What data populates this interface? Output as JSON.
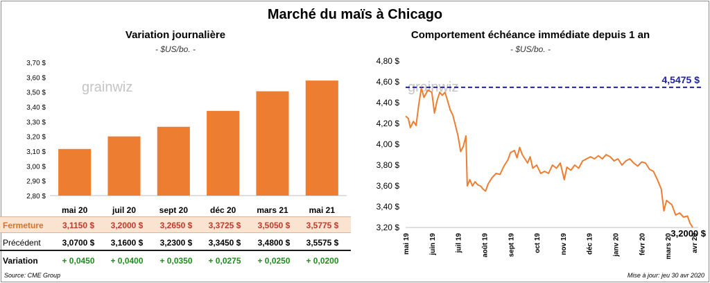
{
  "title": "Marché du maïs à Chicago",
  "left_panel": {
    "subtitle": "Variation journalière",
    "unit": "- $US/bo. -",
    "logo": "grainwiz"
  },
  "right_panel": {
    "subtitle": "Comportement échéance immédiate depuis 1 an",
    "unit": "- $US/bo. -",
    "logo": "grainwiz"
  },
  "table": {
    "close_label": "Fermeture",
    "prev_label": "Précédent",
    "var_label": "Variation",
    "close": [
      "3,1150 $",
      "3,2000 $",
      "3,2650 $",
      "3,3725 $",
      "3,5050 $",
      "3,5775 $"
    ],
    "prev": [
      "3,0700 $",
      "3,1600 $",
      "3,2300 $",
      "3,3450 $",
      "3,4800 $",
      "3,5575 $"
    ],
    "var": [
      "+ 0,0450",
      "+ 0,0400",
      "+ 0,0350",
      "+ 0,0275",
      "+ 0,0250",
      "+ 0,0200"
    ]
  },
  "footer": {
    "source": "Source: CME Group",
    "updated": "Mise à jour: jeu 30 avr 2020"
  },
  "colors": {
    "bar": "#ed7d31",
    "line": "#ed7d31",
    "ref_line": "#1f1fa8",
    "up": "#1e8c1e"
  },
  "chart_data": [
    {
      "type": "bar",
      "title": "Variation journalière",
      "ylabel": "- $US/bo. -",
      "categories": [
        "mai 20",
        "juil 20",
        "sept 20",
        "déc 20",
        "mars 21",
        "mai 21"
      ],
      "values": [
        3.115,
        3.2,
        3.265,
        3.3725,
        3.505,
        3.5775
      ],
      "ylim": [
        2.8,
        3.7
      ],
      "yticks": [
        2.8,
        2.9,
        3.0,
        3.1,
        3.2,
        3.3,
        3.4,
        3.5,
        3.6,
        3.7
      ],
      "ytick_labels": [
        "2,80 $",
        "2,90 $",
        "3,00 $",
        "3,10 $",
        "3,20 $",
        "3,30 $",
        "3,40 $",
        "3,50 $",
        "3,60 $",
        "3,70 $"
      ],
      "grid": false
    },
    {
      "type": "line",
      "title": "Comportement échéance immédiate depuis 1 an",
      "ylabel": "- $US/bo. -",
      "ylim": [
        3.2,
        4.8
      ],
      "yticks": [
        3.2,
        3.4,
        3.6,
        3.8,
        4.0,
        4.2,
        4.4,
        4.6,
        4.8
      ],
      "ytick_labels": [
        "3,20 $",
        "3,40 $",
        "3,60 $",
        "3,80 $",
        "4,00 $",
        "4,20 $",
        "4,40 $",
        "4,60 $",
        "4,80 $"
      ],
      "x_categories": [
        "mai 19",
        "juin 19",
        "juil 19",
        "août 19",
        "sept 19",
        "oct 19",
        "nov 19",
        "déc 19",
        "janv 20",
        "févr 20",
        "mars 20",
        "avr 20"
      ],
      "reference_line": {
        "value": 4.5475,
        "label": "4,5475 $"
      },
      "last_value": {
        "value": 3.2,
        "label": "3,2000 $"
      },
      "series": [
        {
          "points": [
            [
              0.0,
              4.27
            ],
            [
              0.1,
              4.25
            ],
            [
              0.18,
              4.16
            ],
            [
              0.3,
              4.22
            ],
            [
              0.4,
              4.18
            ],
            [
              0.5,
              4.38
            ],
            [
              0.6,
              4.54
            ],
            [
              0.7,
              4.45
            ],
            [
              0.85,
              4.52
            ],
            [
              1.0,
              4.5
            ],
            [
              1.1,
              4.3
            ],
            [
              1.2,
              4.42
            ],
            [
              1.3,
              4.5
            ],
            [
              1.4,
              4.47
            ],
            [
              1.5,
              4.5
            ],
            [
              1.6,
              4.42
            ],
            [
              1.7,
              4.33
            ],
            [
              1.8,
              4.28
            ],
            [
              1.9,
              4.18
            ],
            [
              2.0,
              4.08
            ],
            [
              2.1,
              3.93
            ],
            [
              2.2,
              3.98
            ],
            [
              2.3,
              4.08
            ],
            [
              2.35,
              3.6
            ],
            [
              2.45,
              3.66
            ],
            [
              2.55,
              3.6
            ],
            [
              2.65,
              3.64
            ],
            [
              2.75,
              3.61
            ],
            [
              2.85,
              3.6
            ],
            [
              2.95,
              3.57
            ],
            [
              3.05,
              3.55
            ],
            [
              3.15,
              3.62
            ],
            [
              3.3,
              3.68
            ],
            [
              3.45,
              3.72
            ],
            [
              3.6,
              3.71
            ],
            [
              3.75,
              3.79
            ],
            [
              3.9,
              3.85
            ],
            [
              4.0,
              3.92
            ],
            [
              4.15,
              3.94
            ],
            [
              4.25,
              3.87
            ],
            [
              4.35,
              3.97
            ],
            [
              4.45,
              3.9
            ],
            [
              4.55,
              3.86
            ],
            [
              4.65,
              3.82
            ],
            [
              4.75,
              3.88
            ],
            [
              4.85,
              3.77
            ],
            [
              5.0,
              3.8
            ],
            [
              5.15,
              3.72
            ],
            [
              5.3,
              3.74
            ],
            [
              5.45,
              3.72
            ],
            [
              5.6,
              3.8
            ],
            [
              5.75,
              3.77
            ],
            [
              5.9,
              3.82
            ],
            [
              6.05,
              3.66
            ],
            [
              6.15,
              3.78
            ],
            [
              6.3,
              3.75
            ],
            [
              6.45,
              3.8
            ],
            [
              6.6,
              3.77
            ],
            [
              6.75,
              3.84
            ],
            [
              6.9,
              3.86
            ],
            [
              7.05,
              3.88
            ],
            [
              7.2,
              3.86
            ],
            [
              7.35,
              3.89
            ],
            [
              7.5,
              3.86
            ],
            [
              7.65,
              3.9
            ],
            [
              7.8,
              3.88
            ],
            [
              7.95,
              3.84
            ],
            [
              8.1,
              3.86
            ],
            [
              8.25,
              3.8
            ],
            [
              8.4,
              3.84
            ],
            [
              8.55,
              3.86
            ],
            [
              8.7,
              3.82
            ],
            [
              8.85,
              3.79
            ],
            [
              9.0,
              3.83
            ],
            [
              9.15,
              3.82
            ],
            [
              9.3,
              3.76
            ],
            [
              9.45,
              3.74
            ],
            [
              9.6,
              3.66
            ],
            [
              9.75,
              3.57
            ],
            [
              9.85,
              3.36
            ],
            [
              9.95,
              3.46
            ],
            [
              10.05,
              3.44
            ],
            [
              10.15,
              3.42
            ],
            [
              10.3,
              3.32
            ],
            [
              10.45,
              3.34
            ],
            [
              10.6,
              3.3
            ],
            [
              10.75,
              3.31
            ],
            [
              10.85,
              3.24
            ],
            [
              10.95,
              3.2
            ]
          ]
        }
      ]
    }
  ]
}
